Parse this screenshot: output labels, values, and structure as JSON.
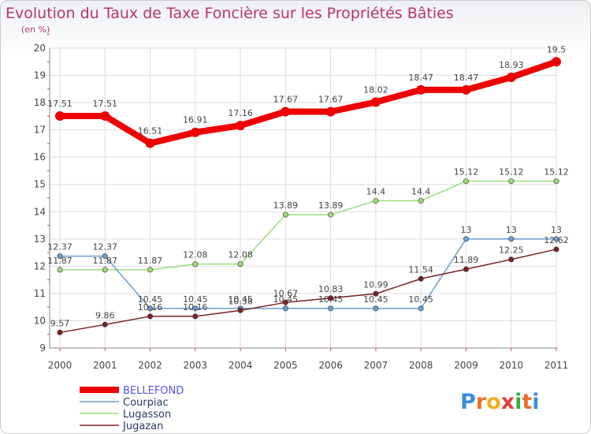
{
  "chart_data": {
    "type": "line",
    "title": "Evolution du Taux de Taxe Foncière sur les Propriétés Bâties",
    "subtitle": "(en %)",
    "xlabel": "",
    "ylabel": "",
    "x": [
      "2000",
      "2001",
      "2002",
      "2003",
      "2004",
      "2005",
      "2006",
      "2007",
      "2008",
      "2009",
      "2010",
      "2011"
    ],
    "ylim": [
      9,
      20
    ],
    "yticks": [
      "9",
      "10",
      "11",
      "12",
      "13",
      "14",
      "15",
      "16",
      "17",
      "18",
      "19",
      "20"
    ],
    "legend_position": "bottom-left",
    "series": [
      {
        "name": "BELLEFOND",
        "color": "#ee0000",
        "values": [
          17.51,
          17.51,
          16.51,
          16.91,
          17.16,
          17.67,
          17.67,
          18.02,
          18.47,
          18.47,
          18.93,
          19.5
        ],
        "labels": [
          "17.51",
          "17.51",
          "16.51",
          "16.91",
          "17.16",
          "17.67",
          "17.67",
          "18.02",
          "18.47",
          "18.47",
          "18.93",
          "19.5"
        ]
      },
      {
        "name": "Courpiac",
        "color": "#6a9ed0",
        "values": [
          12.37,
          12.37,
          10.45,
          10.45,
          10.45,
          10.45,
          10.45,
          10.45,
          10.45,
          13,
          13,
          13
        ],
        "labels": [
          "12.37",
          "12.37",
          "10.45",
          "10.45",
          "10.45",
          "10.45",
          "10.45",
          "10.45",
          "10.45",
          "13",
          "13",
          "13"
        ]
      },
      {
        "name": "Lugasson",
        "color": "#99dd77",
        "values": [
          11.87,
          11.87,
          11.87,
          12.08,
          12.08,
          13.89,
          13.89,
          14.4,
          14.4,
          15.12,
          15.12,
          15.12
        ],
        "labels": [
          "11.87",
          "11.87",
          "11.87",
          "12.08",
          "12.08",
          "13.89",
          "13.89",
          "14.4",
          "14.4",
          "15.12",
          "15.12",
          "15.12"
        ]
      },
      {
        "name": "Jugazan",
        "color": "#7a2222",
        "values": [
          9.57,
          9.86,
          10.16,
          10.16,
          10.38,
          10.67,
          10.83,
          10.99,
          11.54,
          11.89,
          12.25,
          12.62
        ],
        "labels": [
          "9.57",
          "9.86",
          "10.16",
          "10.16",
          "10.38",
          "10.67",
          "10.83",
          "10.99",
          "11.54",
          "11.89",
          "12.25",
          "12.62"
        ]
      }
    ]
  },
  "logo": {
    "text": "Proxiti"
  }
}
